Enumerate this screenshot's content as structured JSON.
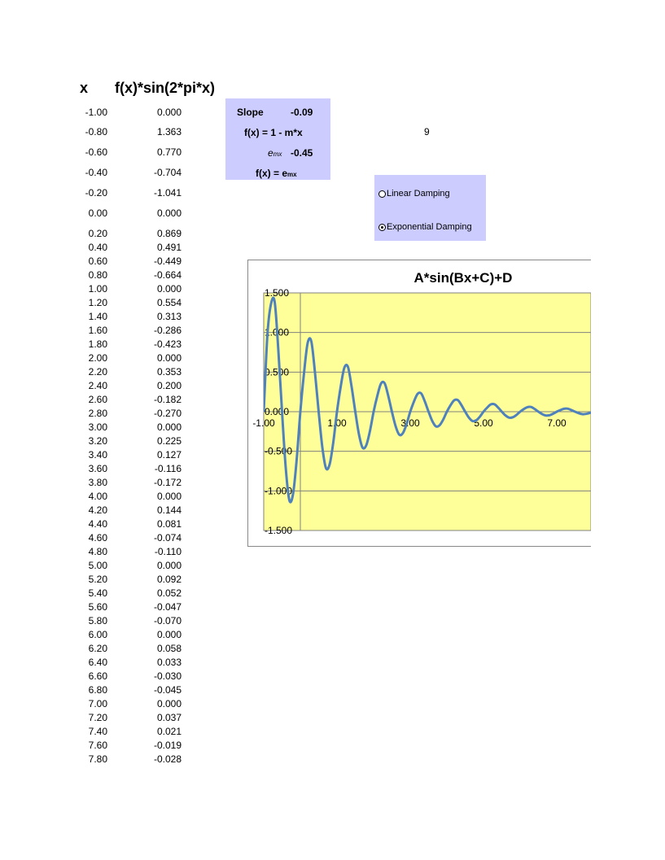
{
  "headers": {
    "x": "x",
    "fx": "f(x)*sin(2*pi*x)"
  },
  "rows": [
    {
      "x": "-1.00",
      "f": "0.000"
    },
    {
      "x": "-0.80",
      "f": "1.363"
    },
    {
      "x": "-0.60",
      "f": "0.770"
    },
    {
      "x": "-0.40",
      "f": "-0.704"
    },
    {
      "x": "-0.20",
      "f": "-1.041"
    },
    {
      "x": "0.00",
      "f": "0.000"
    },
    {
      "x": "0.20",
      "f": "0.869"
    },
    {
      "x": "0.40",
      "f": "0.491"
    },
    {
      "x": "0.60",
      "f": "-0.449"
    },
    {
      "x": "0.80",
      "f": "-0.664"
    },
    {
      "x": "1.00",
      "f": "0.000"
    },
    {
      "x": "1.20",
      "f": "0.554"
    },
    {
      "x": "1.40",
      "f": "0.313"
    },
    {
      "x": "1.60",
      "f": "-0.286"
    },
    {
      "x": "1.80",
      "f": "-0.423"
    },
    {
      "x": "2.00",
      "f": "0.000"
    },
    {
      "x": "2.20",
      "f": "0.353"
    },
    {
      "x": "2.40",
      "f": "0.200"
    },
    {
      "x": "2.60",
      "f": "-0.182"
    },
    {
      "x": "2.80",
      "f": "-0.270"
    },
    {
      "x": "3.00",
      "f": "0.000"
    },
    {
      "x": "3.20",
      "f": "0.225"
    },
    {
      "x": "3.40",
      "f": "0.127"
    },
    {
      "x": "3.60",
      "f": "-0.116"
    },
    {
      "x": "3.80",
      "f": "-0.172"
    },
    {
      "x": "4.00",
      "f": "0.000"
    },
    {
      "x": "4.20",
      "f": "0.144"
    },
    {
      "x": "4.40",
      "f": "0.081"
    },
    {
      "x": "4.60",
      "f": "-0.074"
    },
    {
      "x": "4.80",
      "f": "-0.110"
    },
    {
      "x": "5.00",
      "f": "0.000"
    },
    {
      "x": "5.20",
      "f": "0.092"
    },
    {
      "x": "5.40",
      "f": "0.052"
    },
    {
      "x": "5.60",
      "f": "-0.047"
    },
    {
      "x": "5.80",
      "f": "-0.070"
    },
    {
      "x": "6.00",
      "f": "0.000"
    },
    {
      "x": "6.20",
      "f": "0.058"
    },
    {
      "x": "6.40",
      "f": "0.033"
    },
    {
      "x": "6.60",
      "f": "-0.030"
    },
    {
      "x": "6.80",
      "f": "-0.045"
    },
    {
      "x": "7.00",
      "f": "0.000"
    },
    {
      "x": "7.20",
      "f": "0.037"
    },
    {
      "x": "7.40",
      "f": "0.021"
    },
    {
      "x": "7.60",
      "f": "-0.019"
    },
    {
      "x": "7.80",
      "f": "-0.028"
    }
  ],
  "params": {
    "slope_label": "Slope",
    "slope_value": "-0.09",
    "linear_formula": "f(x) = 1 - m*x",
    "e_label": "e",
    "e_exp": "mx",
    "e_value": "-0.45",
    "exp_formula_prefix": "f(x) = e",
    "exp_formula_exp": "mx"
  },
  "cell_value": "9",
  "damping_options": [
    {
      "label": "Linear Damping",
      "selected": false
    },
    {
      "label": "Exponential Damping",
      "selected": true
    }
  ],
  "colors": {
    "panel": "#ccccff",
    "plot_area": "#ffff99",
    "series": "#4f81bd",
    "gridline": "#808080"
  },
  "chart_data": {
    "type": "line",
    "title": "A*sin(Bx+C)+D",
    "xlabel": "",
    "ylabel": "",
    "xlim": [
      -1.0,
      8.0
    ],
    "ylim": [
      -1.5,
      1.5
    ],
    "x_ticks": [
      "-1.00",
      "1.00",
      "3.00",
      "5.00",
      "7.00"
    ],
    "x_tick_values": [
      -1,
      1,
      3,
      5,
      7
    ],
    "y_ticks": [
      "1.500",
      "1.000",
      "0.500",
      "0.000",
      "-0.500",
      "-1.000",
      "-1.500"
    ],
    "y_tick_values": [
      1.5,
      1.0,
      0.5,
      0.0,
      -0.5,
      -1.0,
      -1.5
    ],
    "grid": "horizontal",
    "legend": "none",
    "series": [
      {
        "smooth": true,
        "x": [
          -1.0,
          -0.9,
          -0.8,
          -0.7,
          -0.6,
          -0.5,
          -0.4,
          -0.3,
          -0.2,
          -0.1,
          0.0,
          0.1,
          0.2,
          0.3,
          0.4,
          0.5,
          0.6,
          0.7,
          0.8,
          0.9,
          1.0,
          1.1,
          1.2,
          1.3,
          1.4,
          1.5,
          1.6,
          1.7,
          1.8,
          1.9,
          2.0,
          2.1,
          2.2,
          2.3,
          2.4,
          2.5,
          2.6,
          2.7,
          2.8,
          2.9,
          3.0,
          3.1,
          3.2,
          3.3,
          3.4,
          3.5,
          3.6,
          3.7,
          3.8,
          3.9,
          4.0,
          4.1,
          4.2,
          4.3,
          4.4,
          4.5,
          4.6,
          4.7,
          4.8,
          4.9,
          5.0,
          5.1,
          5.2,
          5.3,
          5.4,
          5.5,
          5.6,
          5.7,
          5.8,
          5.9,
          6.0,
          6.1,
          6.2,
          6.3,
          6.4,
          6.5,
          6.6,
          6.7,
          6.8,
          6.9,
          7.0,
          7.1,
          7.2,
          7.3,
          7.4,
          7.5,
          7.6,
          7.7,
          7.8,
          7.9,
          8.0
        ],
        "y": [
          0.0,
          0.966,
          1.363,
          1.384,
          0.77,
          0.0,
          -0.704,
          -1.118,
          -1.041,
          -0.603,
          0.0,
          0.487,
          0.869,
          0.886,
          0.491,
          0.0,
          -0.449,
          -0.713,
          -0.664,
          -0.384,
          0.0,
          0.311,
          0.554,
          0.565,
          0.313,
          0.0,
          -0.286,
          -0.455,
          -0.423,
          -0.245,
          0.0,
          0.198,
          0.353,
          0.36,
          0.2,
          0.0,
          -0.182,
          -0.29,
          -0.27,
          -0.156,
          0.0,
          0.126,
          0.225,
          0.23,
          0.127,
          0.0,
          -0.116,
          -0.185,
          -0.172,
          -0.1,
          0.0,
          0.081,
          0.144,
          0.146,
          0.081,
          0.0,
          -0.074,
          -0.118,
          -0.11,
          -0.064,
          0.0,
          0.051,
          0.092,
          0.093,
          0.052,
          0.0,
          -0.047,
          -0.075,
          -0.07,
          -0.041,
          0.0,
          0.033,
          0.058,
          0.06,
          0.033,
          0.0,
          -0.03,
          -0.048,
          -0.045,
          -0.026,
          0.0,
          0.021,
          0.037,
          0.038,
          0.021,
          0.0,
          -0.019,
          -0.031,
          -0.028,
          -0.016,
          0.0
        ]
      }
    ]
  }
}
